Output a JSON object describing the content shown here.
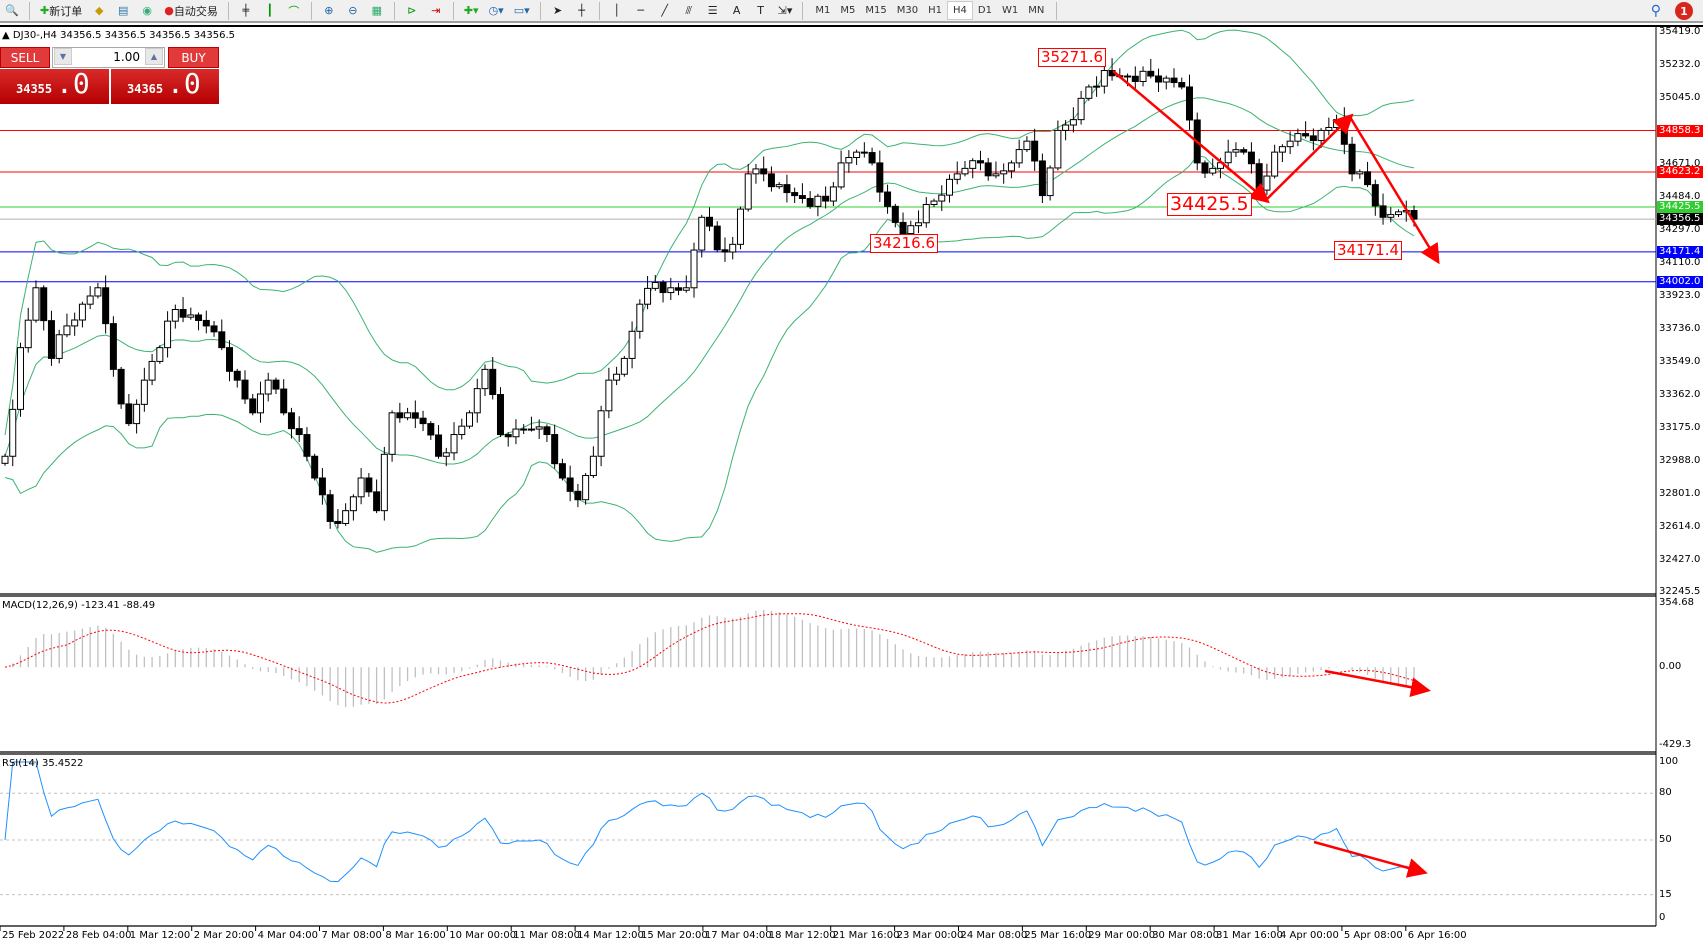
{
  "toolbar": {
    "new_order": "新订单",
    "auto_trading": "自动交易",
    "icons": [
      "zoom-icon",
      "new-order-icon",
      "market-watch-icon",
      "navigator-icon",
      "signals-icon",
      "auto-trading-icon",
      "bar-chart-icon",
      "candlestick-icon",
      "line-chart-icon",
      "zoom-in-icon",
      "zoom-out-icon",
      "tile-windows-icon",
      "chart-shift-icon",
      "autoscroll-icon",
      "indicators-icon",
      "periods-icon",
      "templates-icon",
      "cursor-icon",
      "crosshair-icon",
      "vertical-line-icon",
      "horizontal-line-icon",
      "trendline-icon",
      "fibonacci-icon",
      "fibo-fan-icon",
      "text-icon",
      "text-label-icon",
      "arrows-icon"
    ],
    "timeframes": [
      "M1",
      "M5",
      "M15",
      "M30",
      "H1",
      "H4",
      "D1",
      "W1",
      "MN"
    ],
    "active_timeframe": "H4",
    "notification_count": "1"
  },
  "symbol_header": "DJ30-,H4  34356.5 34356.5 34356.5 34356.5",
  "trade_panel": {
    "sell": "SELL",
    "buy": "BUY",
    "lot": "1.00",
    "bid_main": "34355",
    "bid_frac": ".0",
    "ask_main": "34365",
    "ask_frac": ".0"
  },
  "price_axis": {
    "min": 32245.5,
    "max": 35419.0,
    "ticks": [
      "35419.0",
      "35232.0",
      "35045.0",
      "34671.0",
      "34484.0",
      "34297.0",
      "34110.0",
      "33923.0",
      "33736.0",
      "33549.0",
      "33362.0",
      "33175.0",
      "32988.0",
      "32801.0",
      "32614.0",
      "32427.0",
      "32245.5"
    ]
  },
  "levels": [
    {
      "value": "34858.3",
      "color": "#ff0000",
      "kind": "resistance"
    },
    {
      "value": "34623.2",
      "color": "#ff0000",
      "kind": "resistance"
    },
    {
      "value": "34425.5",
      "color": "#32cd32",
      "kind": "pivot"
    },
    {
      "value": "34356.5",
      "color": "#000000",
      "kind": "current"
    },
    {
      "value": "34171.4",
      "color": "#0000ff",
      "kind": "support"
    },
    {
      "value": "34002.0",
      "color": "#0000ff",
      "kind": "support"
    }
  ],
  "annotations": [
    "35271.6",
    "34425.5",
    "34216.6",
    "34171.4"
  ],
  "time_axis": [
    "25 Feb 2022",
    "28 Feb 04:00",
    "1 Mar 12:00",
    "2 Mar 20:00",
    "4 Mar 04:00",
    "7 Mar 08:00",
    "8 Mar 16:00",
    "10 Mar 00:00",
    "11 Mar 08:00",
    "14 Mar 12:00",
    "15 Mar 20:00",
    "17 Mar 04:00",
    "18 Mar 12:00",
    "21 Mar 16:00",
    "23 Mar 00:00",
    "24 Mar 08:00",
    "25 Mar 16:00",
    "29 Mar 00:00",
    "30 Mar 08:00",
    "31 Mar 16:00",
    "4 Apr 00:00",
    "5 Apr 08:00",
    "6 Apr 16:00"
  ],
  "macd": {
    "label": "MACD(12,26,9) -123.41 -88.49",
    "max": "354.68",
    "zero": "0.00",
    "min": "-429.3",
    "hist_color": "#c0c0c0",
    "signal_color": "#ff0000"
  },
  "rsi": {
    "label": "RSI(14) 35.4522",
    "ticks": [
      "100",
      "80",
      "50",
      "15",
      "0"
    ],
    "color": "#1e90ff"
  },
  "chart_data": {
    "type": "candlestick",
    "symbol": "DJ30-",
    "timeframe": "H4",
    "bands_color": "#3cb371",
    "closes": [
      33014,
      33629,
      33968,
      33568,
      33752,
      33875,
      33968,
      33506,
      33199,
      33445,
      33629,
      33845,
      33814,
      33752,
      33629,
      33445,
      33260,
      33445,
      33260,
      33137,
      32891,
      32645,
      32706,
      32891,
      32706,
      33260,
      33260,
      33199,
      33014,
      33137,
      33260,
      33506,
      33137,
      33168,
      33168,
      33137,
      32891,
      32768,
      33014,
      33445,
      33568,
      33875,
      33998,
      33968,
      33968,
      34367,
      34183,
      34214,
      34613,
      34613,
      34552,
      34490,
      34429,
      34459,
      34675,
      34736,
      34675,
      34429,
      34275,
      34336,
      34459,
      34582,
      34644,
      34675,
      34613,
      34675,
      34798,
      34490,
      34859,
      34920,
      35105,
      35198,
      35167,
      35136,
      35167,
      35155,
      35105,
      34675,
      34644,
      34736,
      34736,
      34521,
      34736,
      34798,
      34828,
      34859,
      34920,
      34613,
      34552,
      34367,
      34398,
      34357
    ]
  }
}
